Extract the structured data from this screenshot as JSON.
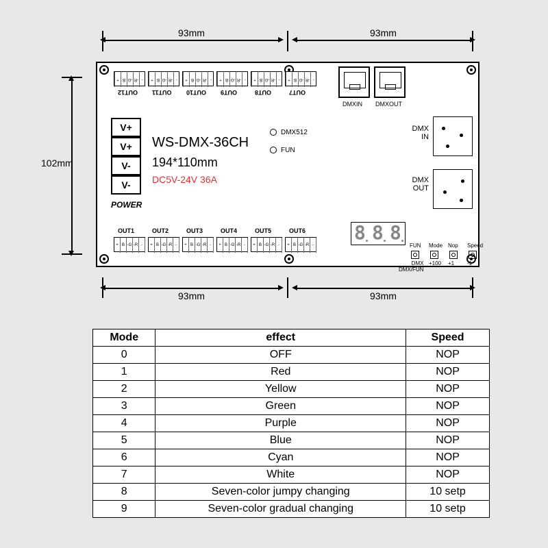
{
  "dimensions": {
    "top_left": "93mm",
    "top_right": "93mm",
    "bottom_left": "93mm",
    "bottom_right": "93mm",
    "left_vertical": "102mm"
  },
  "pcb": {
    "model": "WS-DMX-36CH",
    "size_text": "194*110mm",
    "power_spec": "DC5V-24V 36A",
    "power_label": "POWER",
    "power_pins": [
      "V+",
      "V+",
      "V-",
      "V-"
    ],
    "rj45": {
      "in": "DMXIN",
      "out": "DMXOUT"
    },
    "xlr": {
      "in": "DMX\nIN",
      "out": "DMX\nOUT"
    },
    "leds": {
      "dmx512": "DMX512",
      "fun": "FUN"
    },
    "top_outputs": [
      "OUT12",
      "OUT11",
      "OUT10",
      "OUT9",
      "OUT8",
      "OUT7"
    ],
    "bottom_outputs": [
      "OUT1",
      "OUT2",
      "OUT3",
      "OUT4",
      "OUT5",
      "OUT6"
    ],
    "term_pins": [
      "+",
      "B",
      "-G",
      "-R",
      "-"
    ],
    "buttons": {
      "top_labels": [
        "FUN",
        "Mode",
        "Nop",
        "Speed"
      ],
      "bot_labels": [
        "DMX\nDMX/FUN",
        "+100",
        "+1",
        "-1"
      ]
    }
  },
  "table": {
    "headers": [
      "Mode",
      "effect",
      "Speed"
    ],
    "rows": [
      [
        "0",
        "OFF",
        "NOP"
      ],
      [
        "1",
        "Red",
        "NOP"
      ],
      [
        "2",
        "Yellow",
        "NOP"
      ],
      [
        "3",
        "Green",
        "NOP"
      ],
      [
        "4",
        "Purple",
        "NOP"
      ],
      [
        "5",
        "Blue",
        "NOP"
      ],
      [
        "6",
        "Cyan",
        "NOP"
      ],
      [
        "7",
        "White",
        "NOP"
      ],
      [
        "8",
        "Seven-color jumpy changing",
        "10 setp"
      ],
      [
        "9",
        "Seven-color gradual changing",
        "10 setp"
      ]
    ]
  },
  "colors": {
    "bg": "#e8e8e8",
    "line": "#000000",
    "accent": "#e03030"
  }
}
